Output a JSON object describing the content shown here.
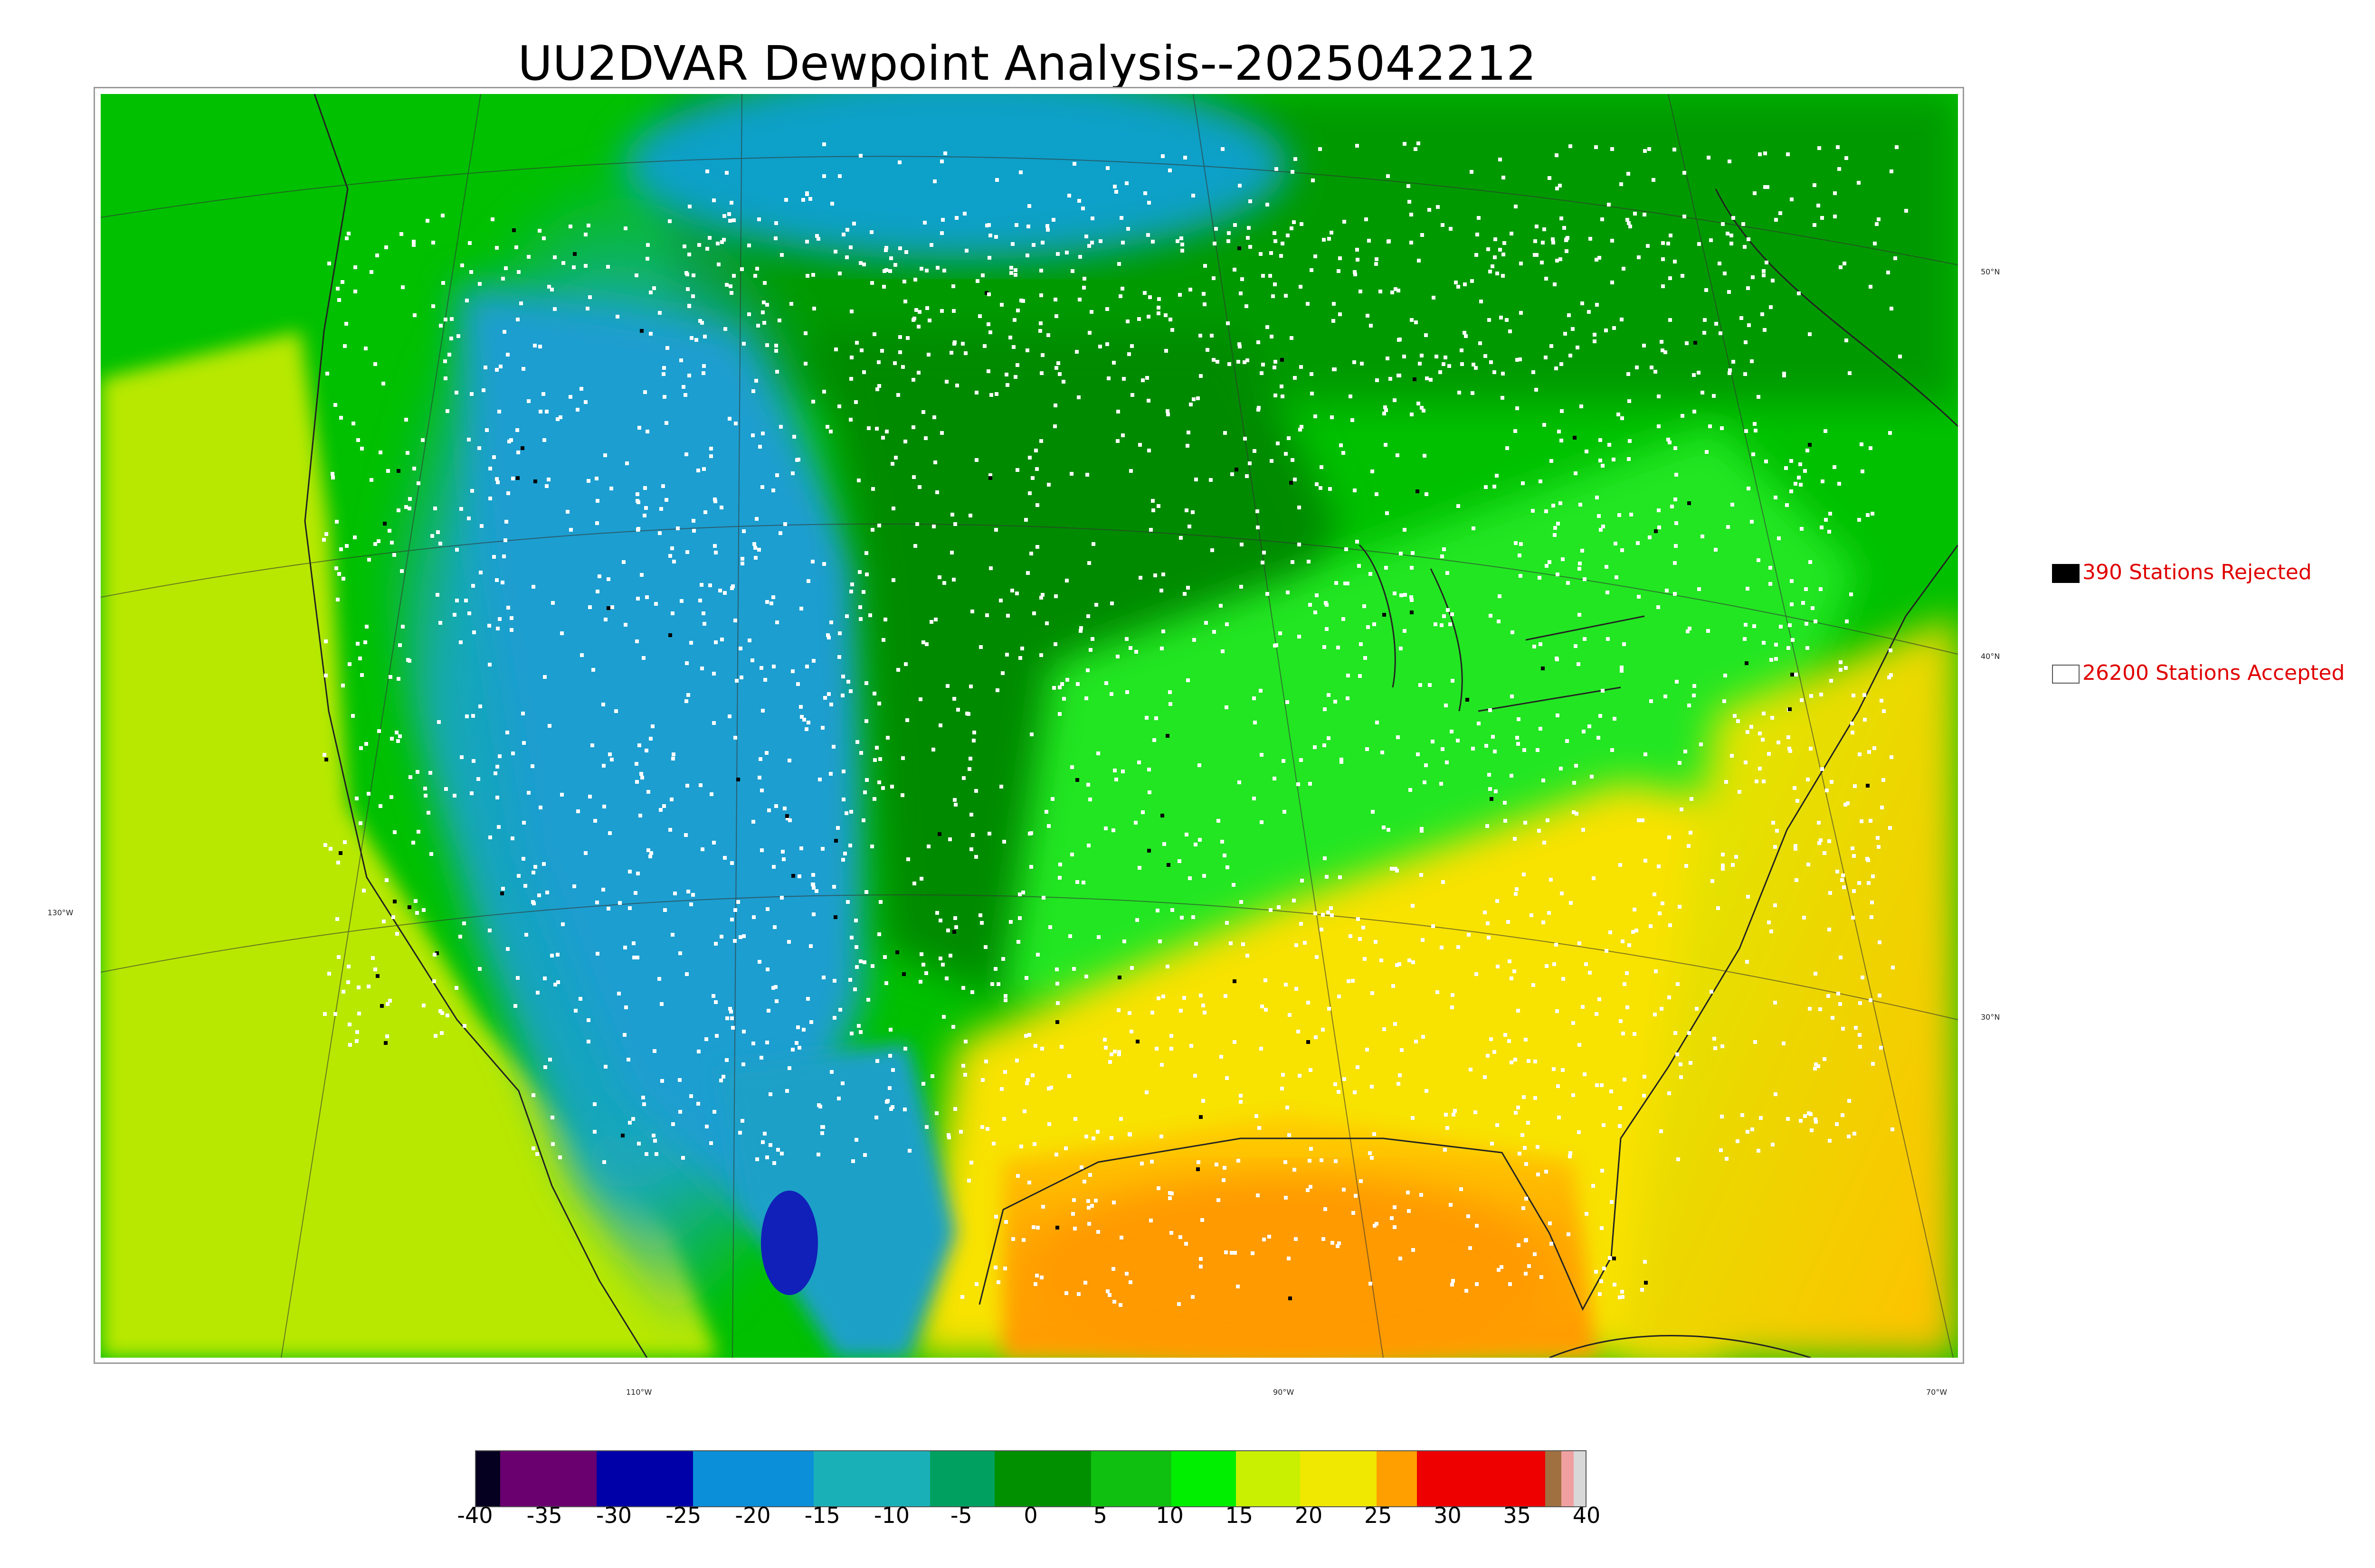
{
  "title": "UU2DVAR Dewpoint Analysis--2025042212",
  "legend": {
    "rejected": {
      "label": "390 Stations Rejected",
      "swatch_color": "#000000"
    },
    "accepted": {
      "label": "26200 Stations Accepted",
      "swatch_color": "#ffffff"
    }
  },
  "grid_labels": {
    "latitudes": [
      "50°N",
      "40°N",
      "30°N"
    ],
    "longitudes": [
      "130°W",
      "110°W",
      "90°W",
      "70°W"
    ]
  },
  "colorbar": {
    "ticks": [
      "-40",
      "-35",
      "-30",
      "-25",
      "-20",
      "-15",
      "-10",
      "-5",
      "0",
      "5",
      "10",
      "15",
      "20",
      "25",
      "30",
      "35",
      "40"
    ],
    "colors": [
      "#05001f",
      "#6a0070",
      "#7a0078",
      "#0000a8",
      "#0a0ab0",
      "#0a8fd8",
      "#15a0d0",
      "#1ab0b8",
      "#00a060",
      "#009000",
      "#10c010",
      "#00ee00",
      "#c8f000",
      "#f0e800",
      "#ffd000",
      "#ffa000",
      "#ee0000",
      "#ee0000",
      "#a07040",
      "#f0a0a0",
      "#d8d8d8"
    ]
  },
  "colors": {
    "ocean_pacific": "#c0e800",
    "ocean_gulf": "#ffa600",
    "ocean_atlantic": "#ffd000",
    "dry_west": "#1aa0c8",
    "plains_green": "#009a00",
    "humid_east": "#20e020",
    "canada_green": "#00b000"
  }
}
